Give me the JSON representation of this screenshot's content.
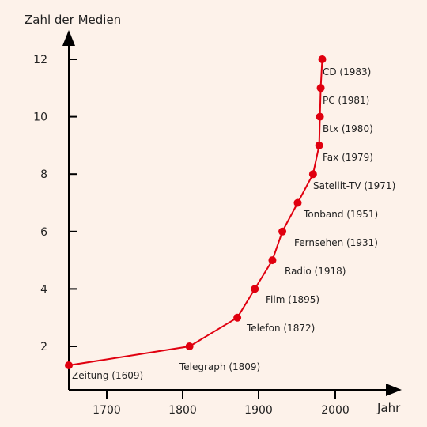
{
  "chart_data": {
    "type": "line",
    "title": "",
    "ylabel": "Zahl der Medien",
    "xlabel": "Jahr",
    "xlim": [
      1650,
      2000
    ],
    "ylim": [
      0,
      12
    ],
    "x_ticks": [
      1700,
      1800,
      1900,
      2000
    ],
    "x_tick_labels": [
      "1700",
      "1800",
      "1900",
      "2000"
    ],
    "y_ticks": [
      2,
      4,
      6,
      8,
      10,
      12
    ],
    "y_tick_labels": [
      "2",
      "4",
      "6",
      "8",
      "10",
      "12"
    ],
    "grid": false,
    "color": "#e0000f",
    "points": [
      {
        "x": 1609,
        "y": 1,
        "label": "Zeitung (1609)"
      },
      {
        "x": 1809,
        "y": 2,
        "label": "Telegraph (1809)"
      },
      {
        "x": 1872,
        "y": 3,
        "label": "Telefon (1872)"
      },
      {
        "x": 1895,
        "y": 4,
        "label": "Film (1895)"
      },
      {
        "x": 1918,
        "y": 5,
        "label": "Radio (1918)"
      },
      {
        "x": 1931,
        "y": 6,
        "label": "Fernsehen (1931)"
      },
      {
        "x": 1951,
        "y": 7,
        "label": "Tonband (1951)"
      },
      {
        "x": 1971,
        "y": 8,
        "label": "Satellit-TV (1971)"
      },
      {
        "x": 1979,
        "y": 9,
        "label": "Fax (1979)"
      },
      {
        "x": 1980,
        "y": 10,
        "label": "Btx (1980)"
      },
      {
        "x": 1981,
        "y": 11,
        "label": "PC (1981)"
      },
      {
        "x": 1983,
        "y": 12,
        "label": "CD (1983)"
      }
    ]
  }
}
